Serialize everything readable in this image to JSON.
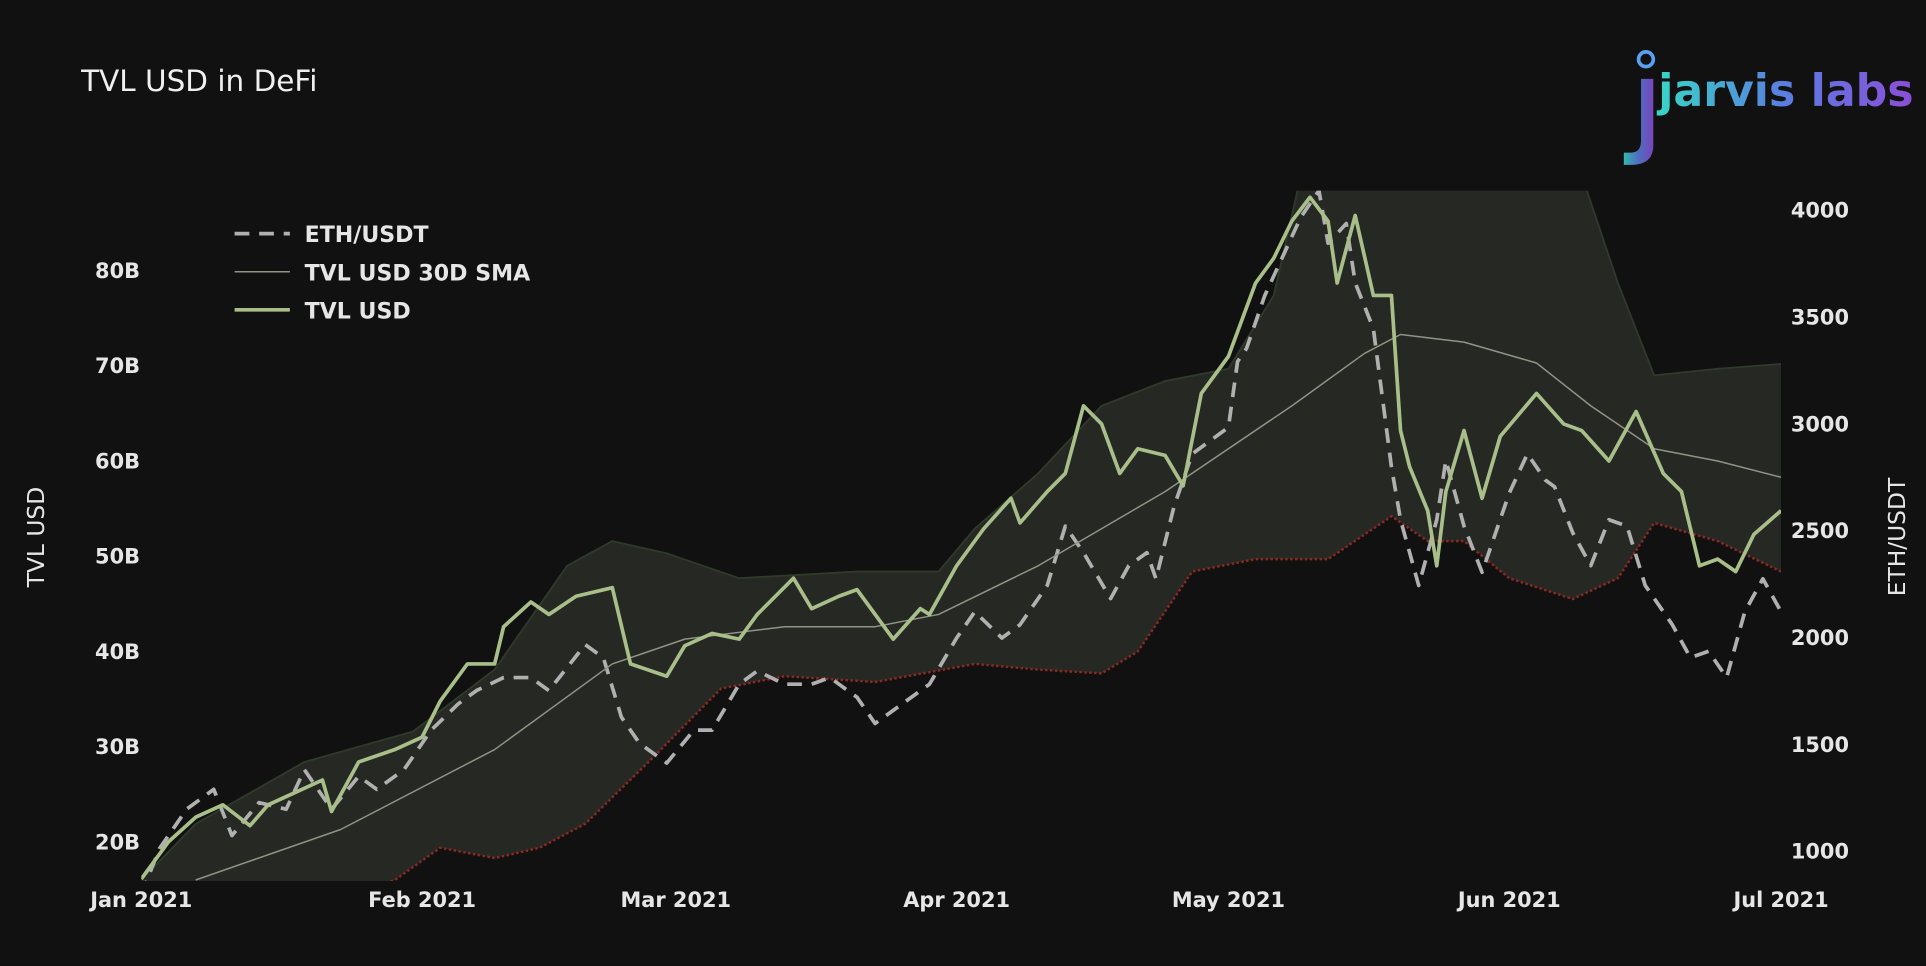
{
  "title": "TVL USD in DeFi",
  "logo": {
    "text": "jarvis labs"
  },
  "chart_data": {
    "type": "line",
    "title": "TVL USD in DeFi",
    "ylabel": "TVL USD",
    "y2label": "ETH/USDT",
    "xlim": [
      "2021-01-01",
      "2021-07-01"
    ],
    "ylim": [
      15.9,
      88.4
    ],
    "y2lim": [
      861,
      4092
    ],
    "x_ticks": [
      "Jan 2021",
      "Feb 2021",
      "Mar 2021",
      "Apr 2021",
      "May 2021",
      "Jun 2021",
      "Jul 2021"
    ],
    "x_tick_dates": [
      "2021-01-01",
      "2021-02-01",
      "2021-03-01",
      "2021-04-01",
      "2021-05-01",
      "2021-06-01",
      "2021-07-01"
    ],
    "y_ticks": [
      {
        "v": 20,
        "label": "20B"
      },
      {
        "v": 30,
        "label": "30B"
      },
      {
        "v": 40,
        "label": "40B"
      },
      {
        "v": 50,
        "label": "50B"
      },
      {
        "v": 60,
        "label": "60B"
      },
      {
        "v": 70,
        "label": "70B"
      },
      {
        "v": 80,
        "label": "80B"
      }
    ],
    "y2_ticks": [
      {
        "v": 1000,
        "label": "1000"
      },
      {
        "v": 1500,
        "label": "1500"
      },
      {
        "v": 2000,
        "label": "2000"
      },
      {
        "v": 2500,
        "label": "2500"
      },
      {
        "v": 3000,
        "label": "3000"
      },
      {
        "v": 3500,
        "label": "3500"
      },
      {
        "v": 4000,
        "label": "4000"
      }
    ],
    "grid": false,
    "legend_position": "top-left",
    "colors": {
      "background": "#111111",
      "band_fill": "#262824",
      "band_upper": "#2f3a2a",
      "band_lower": "#8a2a22",
      "tvl": "#a9bf8a",
      "sma": "#8f9484",
      "eth": "#b0b0b0"
    },
    "legend": [
      "ETH/USDT",
      "TVL USD 30D SMA",
      "TVL USD"
    ],
    "series": [
      {
        "name": "ETH/USDT",
        "axis": "right",
        "style": "dashed",
        "x": [
          "2021-01-01",
          "2021-01-03",
          "2021-01-06",
          "2021-01-09",
          "2021-01-11",
          "2021-01-14",
          "2021-01-17",
          "2021-01-19",
          "2021-01-22",
          "2021-01-25",
          "2021-01-27",
          "2021-01-30",
          "2021-02-02",
          "2021-02-05",
          "2021-02-07",
          "2021-02-10",
          "2021-02-13",
          "2021-02-15",
          "2021-02-19",
          "2021-02-21",
          "2021-02-23",
          "2021-02-25",
          "2021-02-28",
          "2021-03-03",
          "2021-03-05",
          "2021-03-08",
          "2021-03-10",
          "2021-03-13",
          "2021-03-16",
          "2021-03-18",
          "2021-03-21",
          "2021-03-23",
          "2021-03-26",
          "2021-03-29",
          "2021-04-01",
          "2021-04-03",
          "2021-04-06",
          "2021-04-08",
          "2021-04-11",
          "2021-04-13",
          "2021-04-15",
          "2021-04-18",
          "2021-04-20",
          "2021-04-22",
          "2021-04-23",
          "2021-04-25",
          "2021-04-27",
          "2021-05-01",
          "2021-05-02",
          "2021-05-03",
          "2021-05-05",
          "2021-05-07",
          "2021-05-09",
          "2021-05-11",
          "2021-05-12",
          "2021-05-14",
          "2021-05-15",
          "2021-05-17",
          "2021-05-19",
          "2021-05-20",
          "2021-05-22",
          "2021-05-24",
          "2021-05-25",
          "2021-05-27",
          "2021-05-29",
          "2021-06-01",
          "2021-06-03",
          "2021-06-05",
          "2021-06-06",
          "2021-06-08",
          "2021-06-10",
          "2021-06-12",
          "2021-06-14",
          "2021-06-16",
          "2021-06-19",
          "2021-06-21",
          "2021-06-23",
          "2021-06-25",
          "2021-06-27",
          "2021-06-29",
          "2021-07-01"
        ],
        "values": [
          797,
          1012,
          1197,
          1290,
          1074,
          1228,
          1197,
          1382,
          1197,
          1351,
          1290,
          1382,
          1567,
          1690,
          1752,
          1813,
          1813,
          1752,
          1967,
          1906,
          1628,
          1505,
          1413,
          1567,
          1567,
          1782,
          1844,
          1782,
          1782,
          1813,
          1721,
          1598,
          1690,
          1782,
          1998,
          2121,
          1998,
          2060,
          2244,
          2522,
          2398,
          2183,
          2337,
          2398,
          2275,
          2614,
          2860,
          2984,
          3292,
          3353,
          3600,
          3784,
          3969,
          4092,
          3846,
          3938,
          3661,
          3446,
          2799,
          2552,
          2244,
          2552,
          2830,
          2522,
          2306,
          2676,
          2860,
          2737,
          2706,
          2491,
          2337,
          2552,
          2522,
          2244,
          2060,
          1906,
          1936,
          1813,
          2121,
          2275,
          2121
        ]
      },
      {
        "name": "TVL USD 30D SMA",
        "axis": "left",
        "style": "thin",
        "x": [
          "2021-01-07",
          "2021-01-23",
          "2021-02-09",
          "2021-02-22",
          "2021-03-02",
          "2021-03-13",
          "2021-03-23",
          "2021-03-30",
          "2021-04-10",
          "2021-04-24",
          "2021-05-08",
          "2021-05-16",
          "2021-05-20",
          "2021-05-27",
          "2021-06-04",
          "2021-06-10",
          "2021-06-17",
          "2021-06-24",
          "2021-07-01"
        ],
        "values": [
          16,
          21.3,
          29.7,
          38.7,
          41.3,
          42.6,
          42.6,
          43.9,
          49,
          56.8,
          65.8,
          71.3,
          73.3,
          72.5,
          70.3,
          65.8,
          61.3,
          60,
          58.3
        ]
      },
      {
        "name": "TVL USD",
        "axis": "left",
        "style": "solid",
        "x": [
          "2021-01-01",
          "2021-01-04",
          "2021-01-07",
          "2021-01-10",
          "2021-01-13",
          "2021-01-15",
          "2021-01-18",
          "2021-01-21",
          "2021-01-22",
          "2021-01-25",
          "2021-01-29",
          "2021-02-01",
          "2021-02-03",
          "2021-02-06",
          "2021-02-09",
          "2021-02-10",
          "2021-02-13",
          "2021-02-15",
          "2021-02-18",
          "2021-02-22",
          "2021-02-24",
          "2021-02-28",
          "2021-03-02",
          "2021-03-05",
          "2021-03-08",
          "2021-03-10",
          "2021-03-14",
          "2021-03-16",
          "2021-03-19",
          "2021-03-21",
          "2021-03-25",
          "2021-03-28",
          "2021-03-29",
          "2021-04-01",
          "2021-04-04",
          "2021-04-07",
          "2021-04-08",
          "2021-04-11",
          "2021-04-13",
          "2021-04-15",
          "2021-04-17",
          "2021-04-19",
          "2021-04-21",
          "2021-04-24",
          "2021-04-26",
          "2021-04-28",
          "2021-05-01",
          "2021-05-04",
          "2021-05-06",
          "2021-05-08",
          "2021-05-10",
          "2021-05-12",
          "2021-05-13",
          "2021-05-15",
          "2021-05-17",
          "2021-05-19",
          "2021-05-20",
          "2021-05-21",
          "2021-05-23",
          "2021-05-24",
          "2021-05-25",
          "2021-05-27",
          "2021-05-29",
          "2021-05-31",
          "2021-06-04",
          "2021-06-07",
          "2021-06-09",
          "2021-06-12",
          "2021-06-15",
          "2021-06-18",
          "2021-06-20",
          "2021-06-22",
          "2021-06-24",
          "2021-06-26",
          "2021-06-28",
          "2021-07-01"
        ],
        "values": [
          16.1,
          20,
          22.6,
          23.9,
          21.7,
          23.9,
          25.2,
          26.5,
          23.2,
          28.4,
          29.7,
          31,
          34.8,
          38.7,
          38.7,
          42.6,
          45.2,
          43.9,
          45.8,
          46.7,
          38.7,
          37.4,
          40.6,
          41.9,
          41.3,
          43.9,
          47.7,
          44.5,
          45.8,
          46.5,
          41.3,
          44.5,
          43.9,
          49,
          52.9,
          56.1,
          53.5,
          56.8,
          58.7,
          65.8,
          63.9,
          58.7,
          61.3,
          60.6,
          57.4,
          67.1,
          71,
          78.7,
          81.3,
          85.2,
          87.7,
          85.2,
          78.7,
          85.8,
          77.4,
          77.4,
          63.2,
          59.4,
          54.8,
          49,
          56.8,
          63.2,
          56.1,
          62.6,
          67.1,
          63.9,
          63.2,
          60,
          65.2,
          58.7,
          56.8,
          49,
          49.7,
          48.4,
          52.3,
          54.8
        ]
      }
    ],
    "band": {
      "axis": "left",
      "upper": {
        "x": [
          "2021-01-01",
          "2021-01-07",
          "2021-01-19",
          "2021-01-31",
          "2021-02-09",
          "2021-02-17",
          "2021-02-22",
          "2021-02-28",
          "2021-03-08",
          "2021-03-21",
          "2021-03-30",
          "2021-04-03",
          "2021-04-10",
          "2021-04-17",
          "2021-04-24",
          "2021-05-01",
          "2021-05-06",
          "2021-05-09",
          "2021-06-09",
          "2021-06-13",
          "2021-06-17",
          "2021-06-24",
          "2021-07-01"
        ],
        "values": [
          16,
          21.9,
          28.4,
          31.6,
          38.1,
          49,
          51.6,
          50.3,
          47.7,
          48.4,
          48.4,
          52.9,
          58.7,
          65.8,
          68.4,
          69.7,
          77.4,
          90,
          90,
          78.7,
          69,
          69.7,
          70.2
        ]
      },
      "lower": {
        "x": [
          "2021-01-01",
          "2021-01-29",
          "2021-02-03",
          "2021-02-09",
          "2021-02-14",
          "2021-02-19",
          "2021-02-26",
          "2021-03-06",
          "2021-03-13",
          "2021-03-23",
          "2021-04-03",
          "2021-04-10",
          "2021-04-17",
          "2021-04-21",
          "2021-04-27",
          "2021-05-04",
          "2021-05-12",
          "2021-05-19",
          "2021-05-23",
          "2021-05-27",
          "2021-06-01",
          "2021-06-08",
          "2021-06-13",
          "2021-06-17",
          "2021-06-24",
          "2021-07-01"
        ],
        "values": [
          8,
          16,
          19.4,
          18.3,
          19.4,
          21.9,
          28.4,
          36.1,
          37.4,
          36.8,
          38.7,
          38.1,
          37.7,
          40,
          48.4,
          49.7,
          49.7,
          54.2,
          51.6,
          51.6,
          47.7,
          45.5,
          47.7,
          53.5,
          51.6,
          48.4
        ]
      }
    }
  }
}
